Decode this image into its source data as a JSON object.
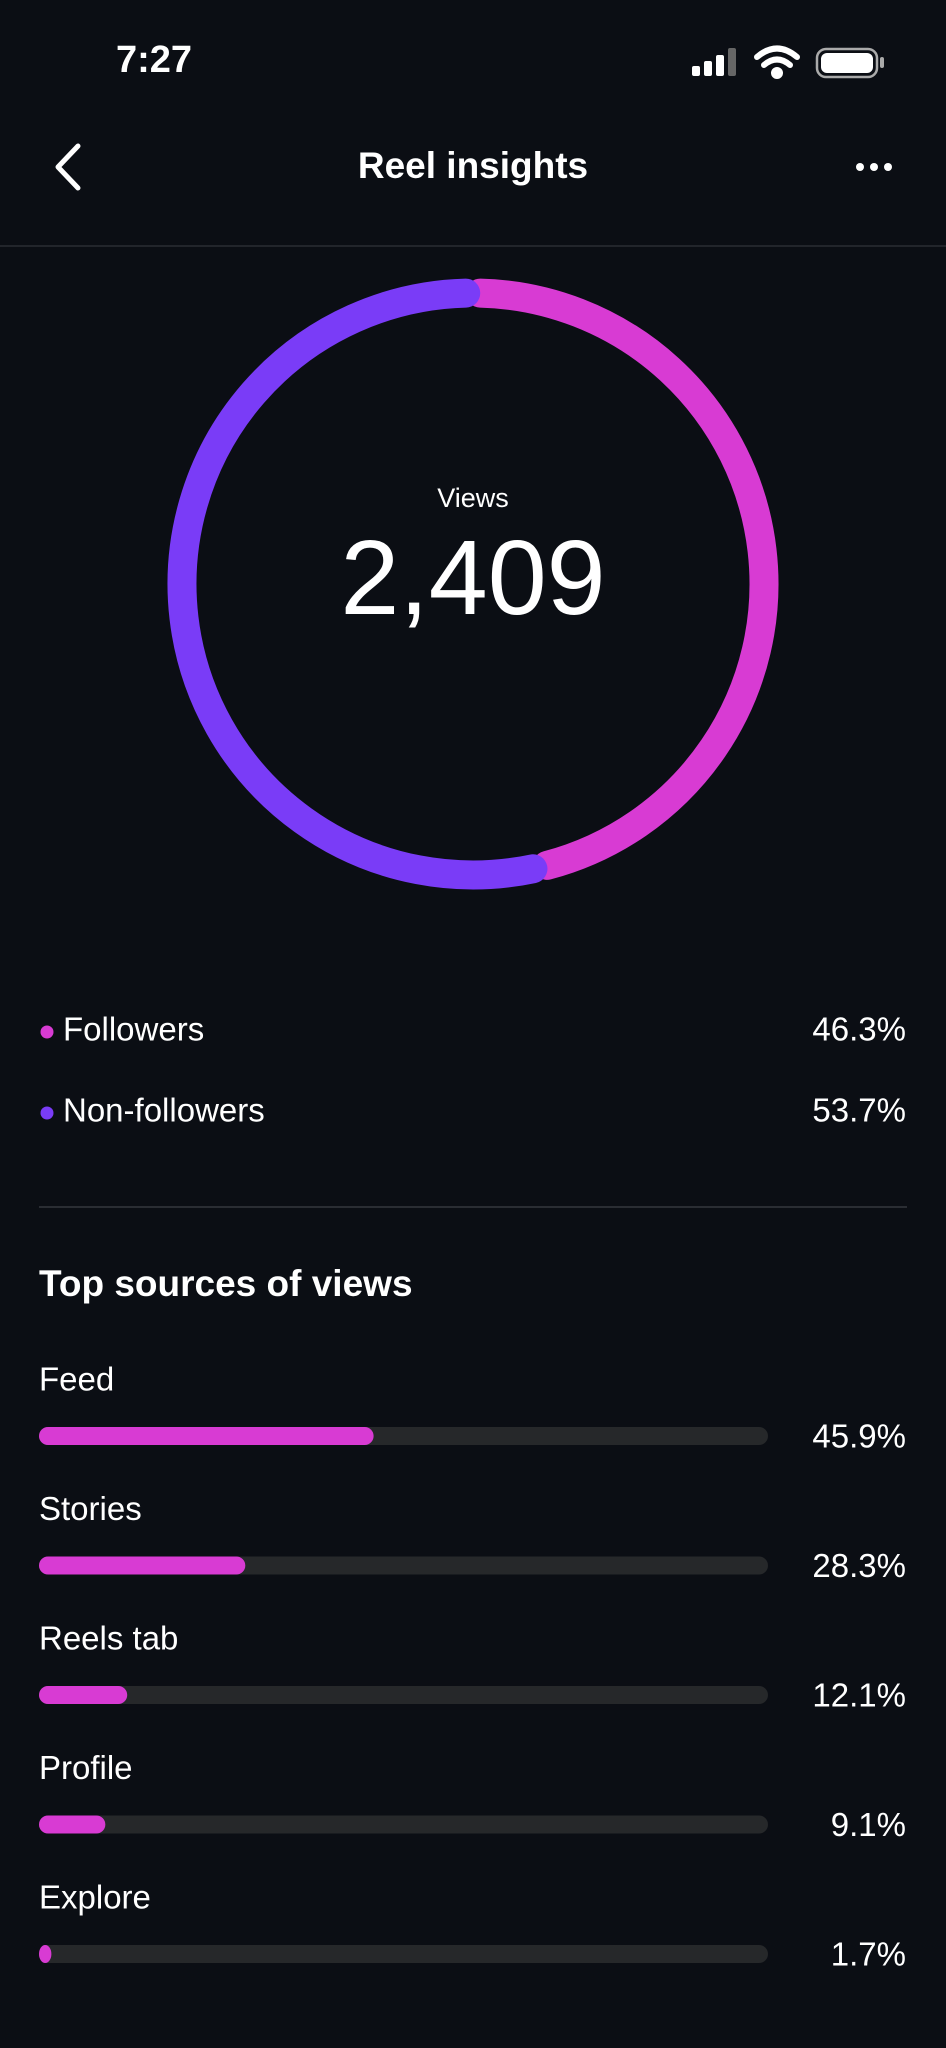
{
  "status_bar": {
    "time": "7:27"
  },
  "header": {
    "title": "Reel insights"
  },
  "chart_data": [
    {
      "type": "donut",
      "center_label": "Views",
      "center_value": "2,409",
      "categories": [
        "Followers",
        "Non-followers"
      ],
      "values": [
        46.3,
        53.7
      ],
      "value_labels": [
        "46.3%",
        "53.7%"
      ],
      "colors": [
        "#d83bd3",
        "#7a3cf7"
      ]
    },
    {
      "type": "bar",
      "title": "Top sources of views",
      "categories": [
        "Feed",
        "Stories",
        "Reels tab",
        "Profile",
        "Explore"
      ],
      "values": [
        45.9,
        28.3,
        12.1,
        9.1,
        1.7
      ],
      "value_labels": [
        "45.9%",
        "28.3%",
        "12.1%",
        "9.1%",
        "1.7%"
      ],
      "color": "#d83bd3",
      "track_color": "#26282a",
      "xlim": [
        0,
        100
      ]
    }
  ]
}
